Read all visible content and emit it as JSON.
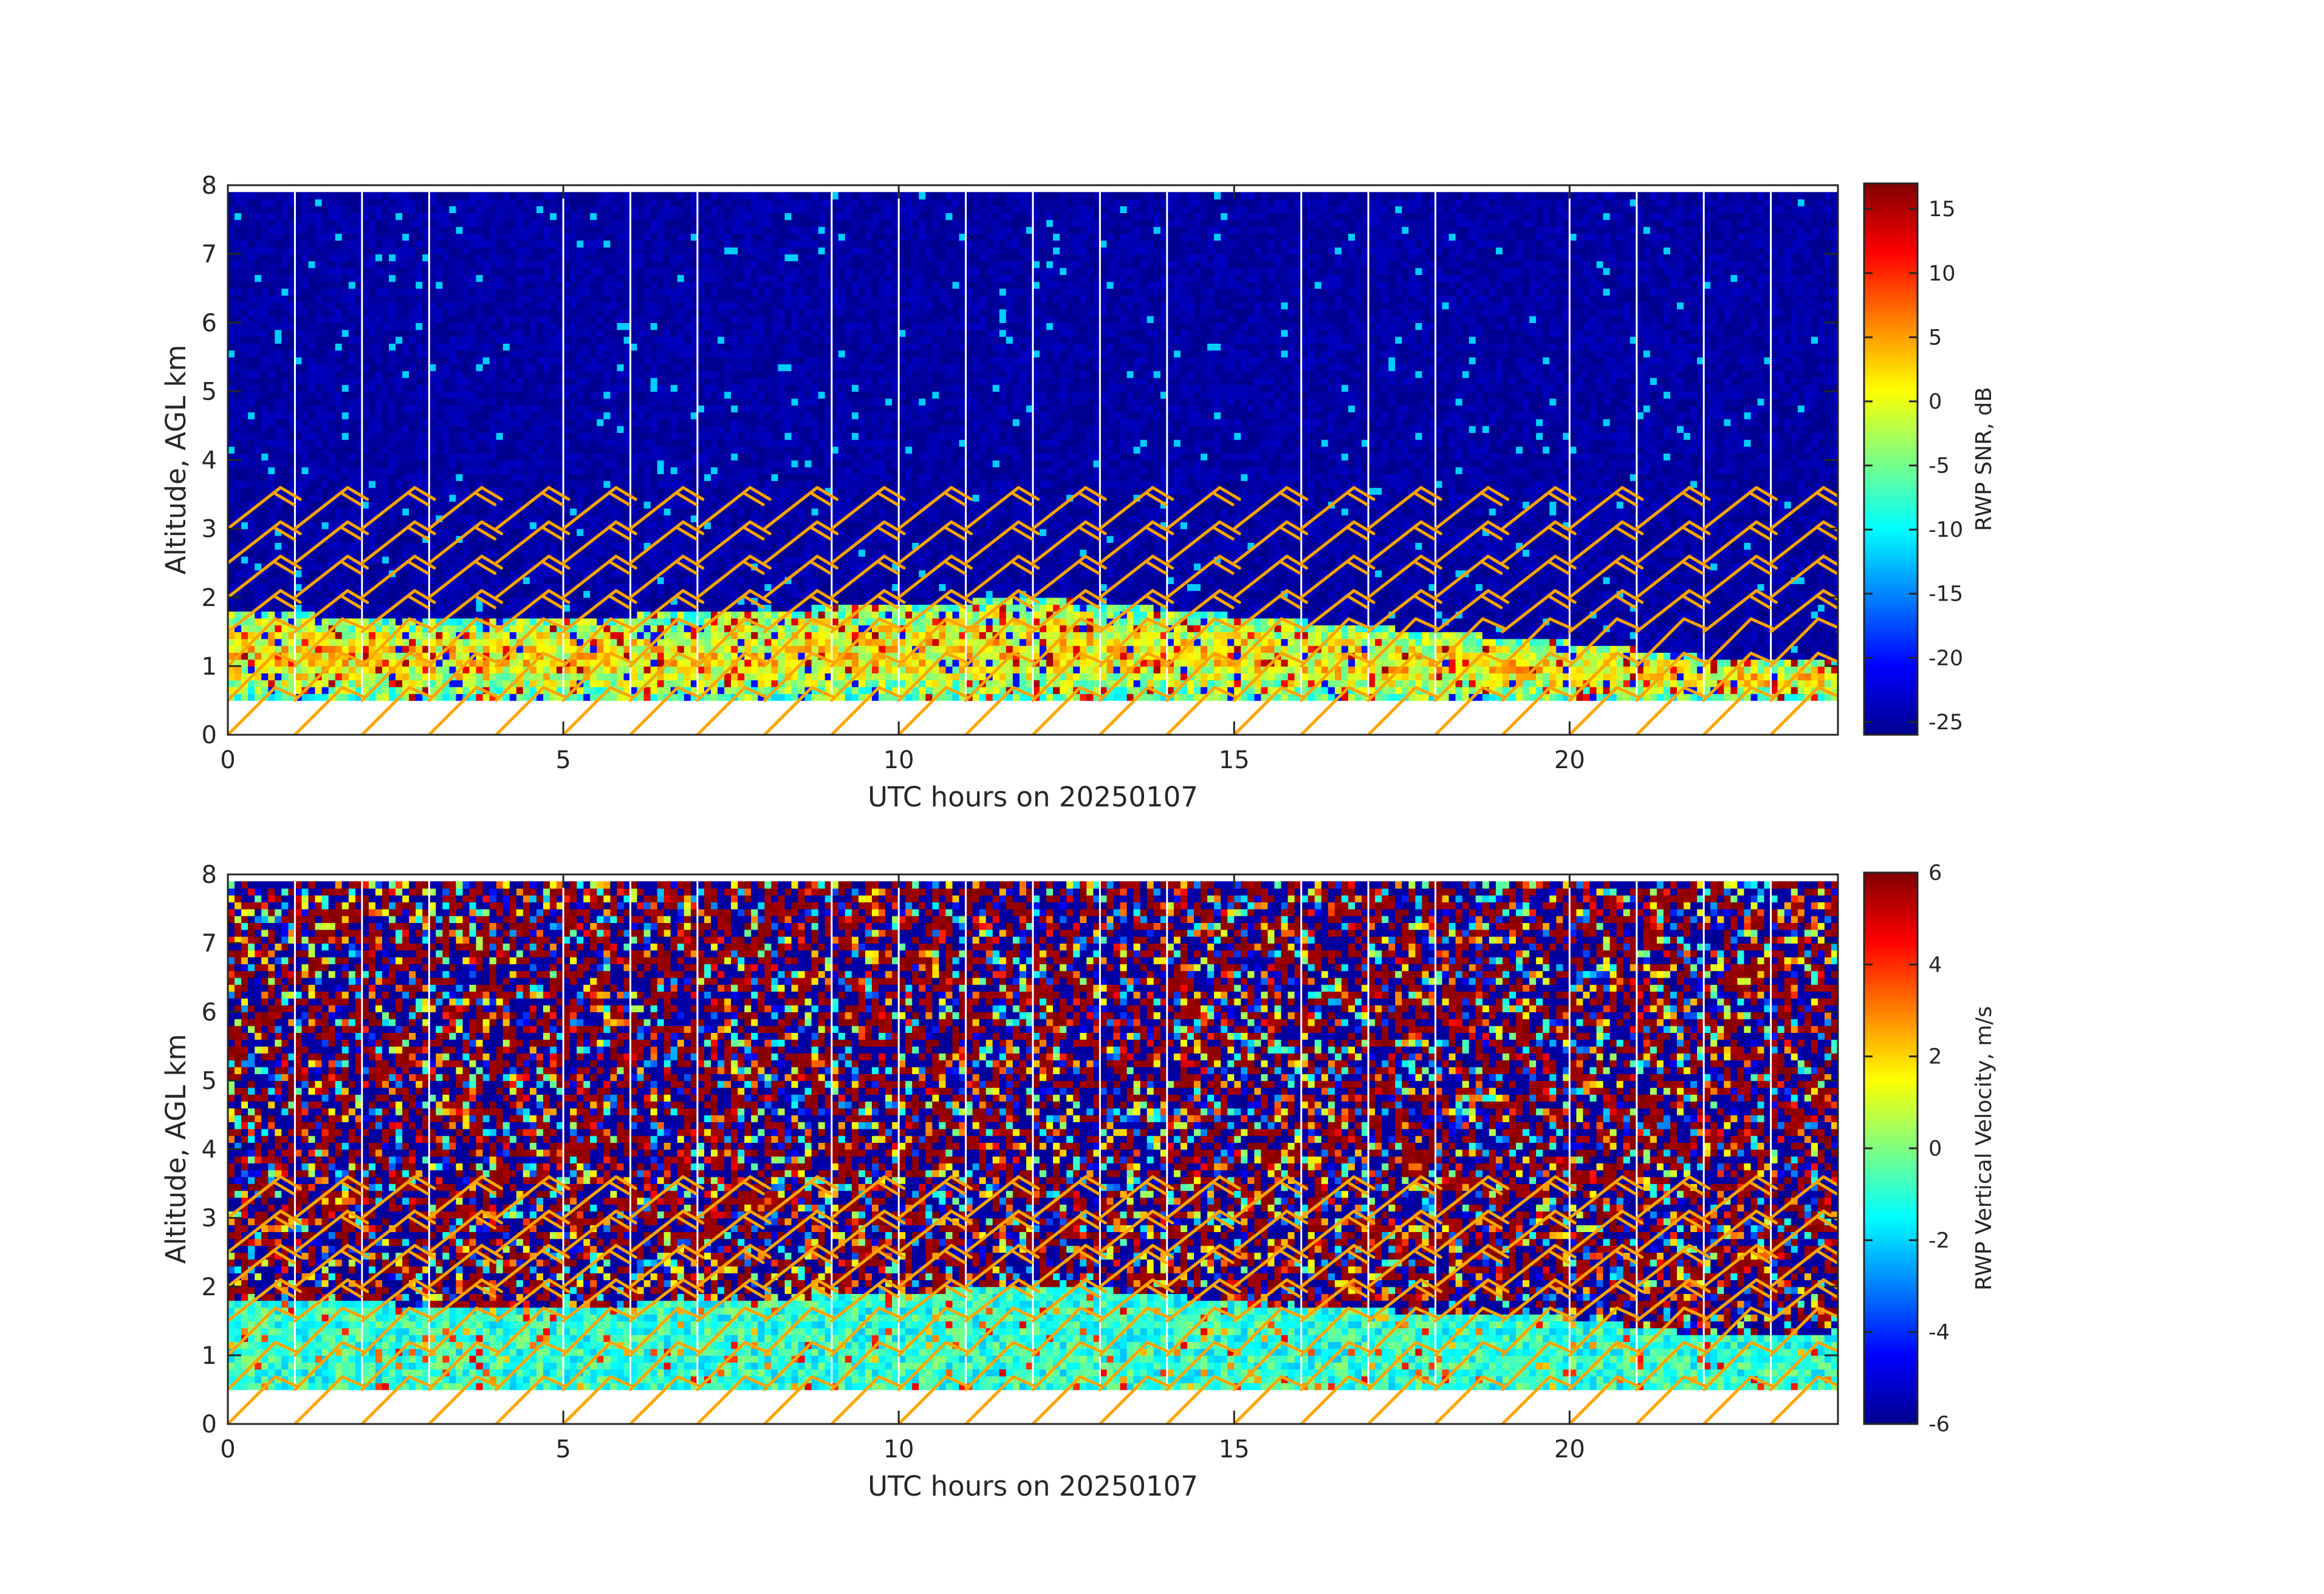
{
  "colormap": [
    "#00008F",
    "#0000FF",
    "#0080FF",
    "#00FFFF",
    "#80FF80",
    "#FFFF00",
    "#FF8000",
    "#FF0000",
    "#800000"
  ],
  "barb_color": "#FFA500",
  "chart_data": [
    {
      "type": "heatmap",
      "xlabel": "UTC hours on 20250107",
      "ylabel": "Altitude, AGL km",
      "xlim": [
        0,
        24
      ],
      "ylim": [
        0,
        8
      ],
      "xticks": [
        0,
        5,
        10,
        15,
        20
      ],
      "yticks": [
        0,
        1,
        2,
        3,
        4,
        5,
        6,
        7,
        8
      ],
      "colorbar": {
        "label": "RWP SNR, dB",
        "range": [
          -26,
          17
        ],
        "ticks": [
          -25,
          -20,
          -15,
          -10,
          -5,
          0,
          5,
          10,
          15
        ]
      },
      "data_range": {
        "x": [
          0,
          24
        ],
        "y": [
          0.5,
          7.9
        ]
      },
      "gap_times_hours": [
        1,
        2,
        3,
        5,
        6,
        7,
        9,
        10,
        11,
        12,
        13,
        14,
        16,
        17,
        18,
        20,
        21,
        22,
        23
      ],
      "noise_level_db": -25,
      "boundary_layer_top_km": [
        {
          "x": 0,
          "y": 1.8
        },
        {
          "x": 2.5,
          "y": 1.6
        },
        {
          "x": 6,
          "y": 1.7
        },
        {
          "x": 10,
          "y": 1.85
        },
        {
          "x": 12,
          "y": 1.95
        },
        {
          "x": 16,
          "y": 1.6
        },
        {
          "x": 20,
          "y": 1.3
        },
        {
          "x": 22,
          "y": 1.1
        },
        {
          "x": 24,
          "y": 1.0
        }
      ],
      "wind_barbs": {
        "times_hours": [
          0,
          1,
          2,
          3,
          4,
          5,
          6,
          7,
          8,
          9,
          10,
          11,
          12,
          13,
          14,
          15,
          16,
          17,
          18,
          19,
          20,
          21,
          22,
          23,
          24
        ],
        "altitudes_km": [
          0,
          0.5,
          1.0,
          1.5,
          2.0,
          2.5,
          3.0
        ]
      }
    },
    {
      "type": "heatmap",
      "xlabel": "UTC hours on 20250107",
      "ylabel": "Altitude, AGL km",
      "xlim": [
        0,
        24
      ],
      "ylim": [
        0,
        8
      ],
      "xticks": [
        0,
        5,
        10,
        15,
        20
      ],
      "yticks": [
        0,
        1,
        2,
        3,
        4,
        5,
        6,
        7,
        8
      ],
      "colorbar": {
        "label": "RWP Vertical Velocity, m/s",
        "range": [
          -6,
          6
        ],
        "ticks": [
          -6,
          -4,
          -2,
          0,
          2,
          4,
          6
        ]
      },
      "data_range": {
        "x": [
          0,
          24
        ],
        "y": [
          0.5,
          7.9
        ]
      },
      "gap_times_hours": [
        1,
        2,
        3,
        5,
        6,
        7,
        9,
        10,
        11,
        12,
        13,
        14,
        16,
        17,
        18,
        20,
        21,
        22,
        23
      ],
      "boundary_layer_top_km": [
        {
          "x": 0,
          "y": 1.8
        },
        {
          "x": 2.5,
          "y": 1.7
        },
        {
          "x": 6,
          "y": 1.7
        },
        {
          "x": 10,
          "y": 1.85
        },
        {
          "x": 12,
          "y": 2.0
        },
        {
          "x": 16,
          "y": 1.65
        },
        {
          "x": 20,
          "y": 1.5
        },
        {
          "x": 22,
          "y": 1.25
        },
        {
          "x": 24,
          "y": 1.2
        }
      ],
      "wind_barbs": {
        "times_hours": [
          0,
          1,
          2,
          3,
          4,
          5,
          6,
          7,
          8,
          9,
          10,
          11,
          12,
          13,
          14,
          15,
          16,
          17,
          18,
          19,
          20,
          21,
          22,
          23,
          24
        ],
        "altitudes_km": [
          0,
          0.5,
          1.0,
          1.5,
          2.0,
          2.5,
          3.0
        ]
      }
    }
  ]
}
